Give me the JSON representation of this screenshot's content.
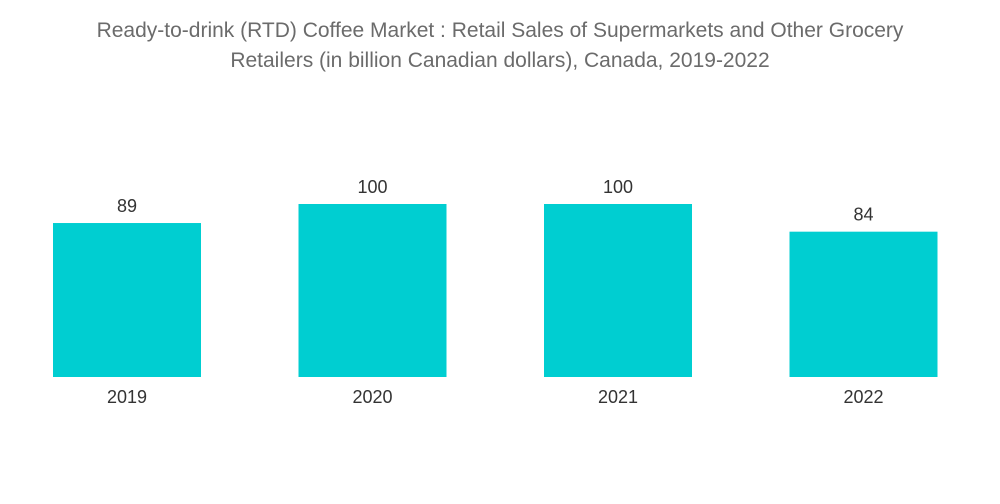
{
  "chart_data": {
    "type": "bar",
    "title": {
      "line1": "Ready-to-drink (RTD) Coffee Market : Retail Sales of Supermarkets and Other Grocery",
      "line2": "Retailers (in billion Canadian dollars), Canada, 2019-2022"
    },
    "categories": [
      "2019",
      "2020",
      "2021",
      "2022"
    ],
    "values": [
      89,
      100,
      100,
      84
    ],
    "data_labels": [
      "89",
      "100",
      "100",
      "84"
    ],
    "xlabel": "",
    "ylabel": "",
    "ylim": [
      0,
      100
    ],
    "grid": false,
    "legend": "none",
    "bar_color": "#00CED1"
  }
}
